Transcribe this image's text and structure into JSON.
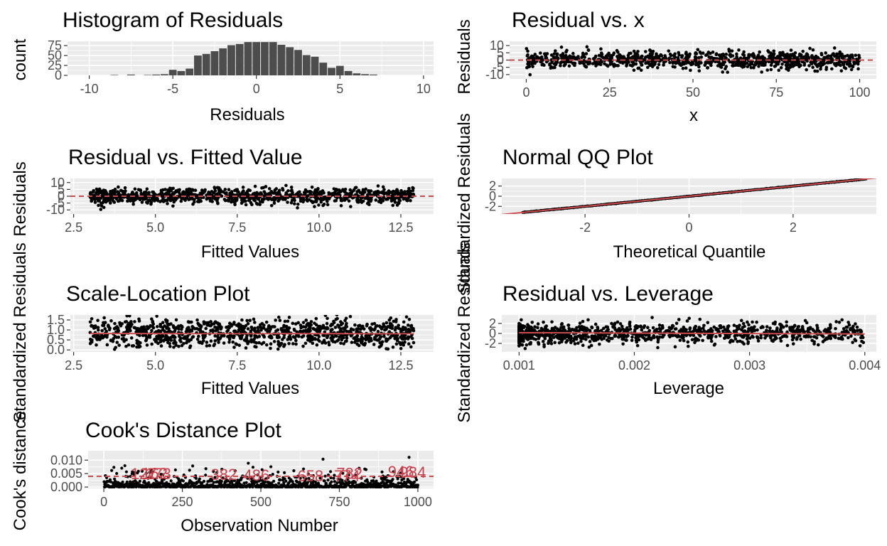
{
  "colors": {
    "panel_bg": "#ebebeb",
    "grid": "#ffffff",
    "ref_line": "#cc4c4c",
    "point": "#000000",
    "bar": "#4d4d4d",
    "tick_text": "#4d4d4d"
  },
  "chart_data": [
    {
      "id": "hist",
      "type": "bar",
      "title": "Histogram of Residuals",
      "xlabel": "Residuals",
      "ylabel": "count",
      "xlim": [
        -11.3,
        10.6
      ],
      "ylim": [
        0,
        86
      ],
      "xticks": [
        -10,
        -5,
        0,
        5,
        10
      ],
      "xtick_labels": [
        "-10",
        "-5",
        "0",
        "5",
        "10"
      ],
      "yticks": [
        0,
        25,
        50,
        75
      ],
      "ytick_labels": [
        "0",
        "25",
        "50",
        "75"
      ],
      "bin_width": 0.5,
      "bin_centers": [
        -8.5,
        -7.5,
        -6.5,
        -6.0,
        -5.5,
        -5.0,
        -4.5,
        -4.0,
        -3.5,
        -3.0,
        -2.5,
        -2.0,
        -1.5,
        -1.0,
        -0.5,
        0.0,
        0.5,
        1.0,
        1.5,
        2.0,
        2.5,
        3.0,
        3.5,
        4.0,
        4.5,
        5.0,
        5.5,
        6.0,
        6.5,
        7.0
      ],
      "values": [
        1,
        2,
        1,
        2,
        3,
        14,
        11,
        17,
        50,
        54,
        61,
        68,
        76,
        79,
        84,
        84,
        84,
        84,
        77,
        71,
        64,
        51,
        47,
        32,
        19,
        24,
        11,
        5,
        3,
        2
      ]
    },
    {
      "id": "resx",
      "type": "scatter",
      "title": "Residual vs. x",
      "xlabel": "x",
      "ylabel": "Residuals",
      "xlim": [
        -5,
        105
      ],
      "ylim": [
        -13,
        13
      ],
      "xticks": [
        0,
        25,
        50,
        75,
        100
      ],
      "xtick_labels": [
        "0",
        "25",
        "50",
        "75",
        "100"
      ],
      "yticks": [
        -10,
        -5,
        0,
        5,
        10
      ],
      "ytick_labels": [
        "-10",
        "-5",
        "0",
        "5",
        "10"
      ],
      "hline": 0,
      "n_points": 1000,
      "x_range": [
        0,
        100
      ],
      "residual_sd": 2.9
    },
    {
      "id": "resfit",
      "type": "scatter",
      "title": "Residual vs. Fitted Value",
      "xlabel": "Fitted Values",
      "ylabel": "Residuals",
      "xlim": [
        2.4,
        13.5
      ],
      "ylim": [
        -13,
        13
      ],
      "xticks": [
        2.5,
        5.0,
        7.5,
        10.0,
        12.5
      ],
      "xtick_labels": [
        "2.5",
        "5.0",
        "7.5",
        "10.0",
        "12.5"
      ],
      "yticks": [
        -10,
        -5,
        0,
        5,
        10
      ],
      "ytick_labels": [
        "-10",
        "-5",
        "0",
        "5",
        "10"
      ],
      "hline": 0,
      "n_points": 1000,
      "x_range": [
        3.0,
        12.9
      ],
      "residual_sd": 2.9
    },
    {
      "id": "qq",
      "type": "scatter",
      "title": "Normal QQ Plot",
      "xlabel": "Theoretical Quantile",
      "ylabel": "Standardized Residuals",
      "xlim": [
        -3.6,
        3.6
      ],
      "ylim": [
        -3.5,
        3.5
      ],
      "xticks": [
        -2,
        0,
        2
      ],
      "xtick_labels": [
        "-2",
        "0",
        "2"
      ],
      "yticks": [
        -2,
        0,
        2
      ],
      "ytick_labels": [
        "-2",
        "0",
        "2"
      ],
      "abline": {
        "intercept": 0,
        "slope": 1
      },
      "n_points": 1000,
      "theoretical_range": [
        -3.2,
        3.4
      ]
    },
    {
      "id": "scaleloc",
      "type": "scatter",
      "title": "Scale-Location Plot",
      "xlabel": "Fitted Values",
      "ylabel": "Standardized Residuals",
      "xlim": [
        2.4,
        13.5
      ],
      "ylim": [
        -0.1,
        1.75
      ],
      "xticks": [
        2.5,
        5.0,
        7.5,
        10.0,
        12.5
      ],
      "xtick_labels": [
        "2.5",
        "5.0",
        "7.5",
        "10.0",
        "12.5"
      ],
      "yticks": [
        0.0,
        0.5,
        1.0,
        1.5
      ],
      "ytick_labels": [
        "0.0",
        "0.5",
        "1.0",
        "1.5"
      ],
      "smooth_line": [
        [
          3.0,
          0.82
        ],
        [
          12.9,
          0.81
        ]
      ],
      "n_points": 1000,
      "x_range": [
        3.0,
        12.9
      ]
    },
    {
      "id": "lev",
      "type": "scatter",
      "title": "Residual vs. Leverage",
      "xlabel": "Leverage",
      "ylabel": "Standardized Residuals",
      "xlim": [
        0.00085,
        0.0041
      ],
      "ylim": [
        -3.7,
        3.7
      ],
      "xticks": [
        0.001,
        0.002,
        0.003,
        0.004
      ],
      "xtick_labels": [
        "0.001",
        "0.002",
        "0.003",
        "0.004"
      ],
      "yticks": [
        -2,
        0,
        2
      ],
      "ytick_labels": [
        "-2",
        "0",
        "2"
      ],
      "smooth_line": [
        [
          0.001,
          0.15
        ],
        [
          0.004,
          -0.1
        ]
      ],
      "n_points": 1000,
      "x_range": [
        0.001,
        0.004
      ]
    },
    {
      "id": "cook",
      "type": "scatter",
      "title": "Cook's Distance Plot",
      "xlabel": "Observation Number",
      "ylabel": "Cook's distance",
      "xlim": [
        -50,
        1050
      ],
      "ylim": [
        -0.0005,
        0.0135
      ],
      "xticks": [
        0,
        250,
        500,
        750,
        1000
      ],
      "xtick_labels": [
        "0",
        "250",
        "500",
        "750",
        "1000"
      ],
      "yticks": [
        0.0,
        0.005,
        0.01
      ],
      "ytick_labels": [
        "0.000",
        "0.005",
        "0.010"
      ],
      "hline": 0.004,
      "n_points": 1000,
      "annotations": [
        {
          "label": "382",
          "x": 382,
          "y": 0.0048
        },
        {
          "label": "486",
          "x": 486,
          "y": 0.0045
        },
        {
          "label": "658",
          "x": 658,
          "y": 0.0043
        },
        {
          "label": "774",
          "x": 774,
          "y": 0.0043
        },
        {
          "label": "162",
          "x": 162,
          "y": 0.0052
        },
        {
          "label": "173",
          "x": 173,
          "y": 0.0051
        },
        {
          "label": "127",
          "x": 127,
          "y": 0.005
        },
        {
          "label": "782",
          "x": 782,
          "y": 0.0052
        },
        {
          "label": "946",
          "x": 946,
          "y": 0.0058
        },
        {
          "label": "984",
          "x": 984,
          "y": 0.0056
        }
      ]
    }
  ]
}
